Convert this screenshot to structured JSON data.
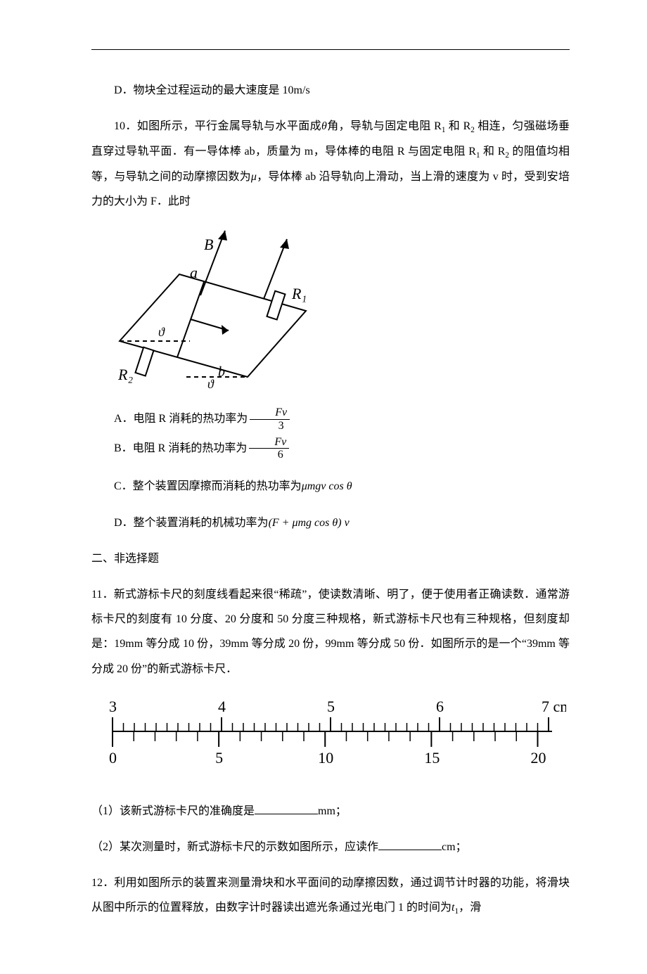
{
  "hr_color": "#000000",
  "q9": {
    "optD": "D．物块全过程运动的最大速度是 10m/s"
  },
  "q10": {
    "stem1": "10．如图所示，平行金属导轨与水平面成",
    "theta": "θ",
    "stem2": "角，导轨与固定电阻 R",
    "sub1": "1",
    "stem3": " 和 R",
    "sub2": "2",
    "stem4": " 相连，匀强磁场垂直穿过导轨平面．有一导体棒 ab，质量为 m，导体棒的电阻 R 与固定电阻 R",
    "stem5": " 和 R",
    "stem6": "的阻值均相等，与导轨之间的动摩擦因数为",
    "mu": "μ",
    "stem7": "，导体棒 ab 沿导轨向上滑动，当上滑的速度为 v 时，受到安培力的大小为 F．此时",
    "optA_pre": "A．电阻 R 消耗的热功率为",
    "optA_num": "Fv",
    "optA_den": "3",
    "optB_pre": "B．电阻 R 消耗的热功率为",
    "optB_num": "Fv",
    "optB_den": "6",
    "optC_pre": "C．整个装置因摩擦而消耗的热功率为",
    "optC_expr": "μmgv cos θ",
    "optD_pre": "D．整个装置消耗的机械功率为",
    "optD_expr": "(F + μmg cos θ) v",
    "fig": {
      "B": "B",
      "a": "a",
      "b": "b",
      "R1": "R₁",
      "R2": "R₂",
      "theta": "ϑ"
    }
  },
  "section2": "二、非选择题",
  "q11": {
    "stem": "11．新式游标卡尺的刻度线看起来很“稀疏”，使读数清晰、明了，便于使用者正确读数．通常游标卡尺的刻度有 10 分度、20 分度和 50 分度三种规格，新式游标卡尺也有三种规格，但刻度却是：19mm 等分成 10 份，39mm 等分成 20 份，99mm 等分成 50 份．如图所示的是一个“39mm 等分成 20 份”的新式游标卡尺．",
    "part1_pre": "（1）该新式游标卡尺的准确度是",
    "part1_unit": "mm；",
    "part2_pre": "（2）某次测量时，新式游标卡尺的示数如图所示，应读作",
    "part2_unit": "cm；",
    "caliper": {
      "main_labels": [
        "3",
        "4",
        "5",
        "6",
        "7 cm"
      ],
      "main_start_mm": 30,
      "main_end_mm": 70,
      "vernier_labels": [
        "0",
        "5",
        "10",
        "15",
        "20"
      ],
      "vernier_start_mm": 30,
      "vernier_span_mm": 39,
      "color": "#000000"
    }
  },
  "q12": {
    "stem1": "12．利用如图所示的装置来测量滑块和水平面间的动摩擦因数，通过调节计时器的功能，将滑块从图中所示的位置释放，由数字计时器读出遮光条通过光电门 1 的时间为",
    "t1": "t",
    "t1sub": "1",
    "stem2": "，滑"
  }
}
